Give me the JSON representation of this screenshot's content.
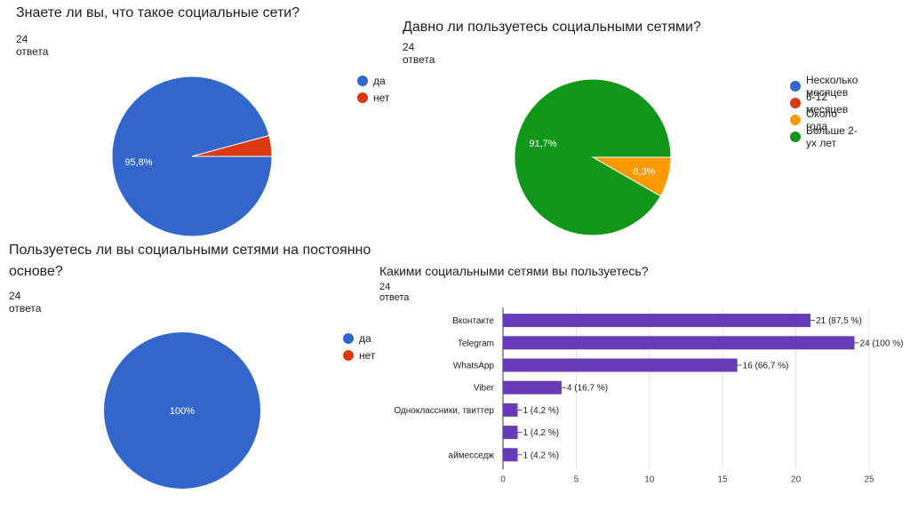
{
  "chart_data": [
    {
      "type": "pie",
      "title": "Знаете ли вы, что такое социальные сети?",
      "responses": "24 ответа",
      "categories": [
        "да",
        "нет"
      ],
      "values": [
        95.8,
        4.2
      ],
      "labels": [
        "95,8%",
        ""
      ],
      "colors": [
        "#3366cc",
        "#dc3912"
      ],
      "legend_position": "right"
    },
    {
      "type": "pie",
      "title": "Давно ли пользуетесь социальными сетями?",
      "responses": "24 ответа",
      "categories": [
        "Несколько месяцев",
        "6-12 месяцев",
        "Около года",
        "Больше 2-ух лет"
      ],
      "values": [
        0,
        0,
        8.3,
        91.7
      ],
      "labels": [
        "",
        "",
        "8,3%",
        "91,7%"
      ],
      "colors": [
        "#3366cc",
        "#dc3912",
        "#ff9900",
        "#109618"
      ],
      "legend_position": "right"
    },
    {
      "type": "pie",
      "title": "Пользуетесь ли вы социальными сетями на постоянно основе?",
      "title_lines": [
        "Пользуетесь ли вы социальными сетями на постоянно",
        "основе?"
      ],
      "responses": "24 ответа",
      "categories": [
        "да",
        "нет"
      ],
      "values": [
        100,
        0
      ],
      "labels": [
        "100%",
        ""
      ],
      "colors": [
        "#3366cc",
        "#dc3912"
      ],
      "legend_position": "right"
    },
    {
      "type": "bar",
      "orientation": "horizontal",
      "title": "Какими социальными сетями вы пользуетесь?",
      "responses": "24 ответа",
      "categories": [
        "Вконтакте",
        "Telegram",
        "WhatsApp",
        "Viber",
        "Одноклассники, твиттер",
        "",
        "аймесседж"
      ],
      "values": [
        21,
        24,
        16,
        4,
        1,
        1,
        1
      ],
      "data_labels": [
        "21 (87,5 %)",
        "24 (100 %)",
        "16 (66,7 %)",
        "4 (16,7 %)",
        "1 (4,2 %)",
        "1 (4,2 %)",
        "1 (4,2 %)"
      ],
      "xlim": [
        0,
        25
      ],
      "xticks": [
        0,
        5,
        10,
        15,
        20,
        25
      ],
      "grid": true,
      "color": "#673ab7"
    }
  ]
}
